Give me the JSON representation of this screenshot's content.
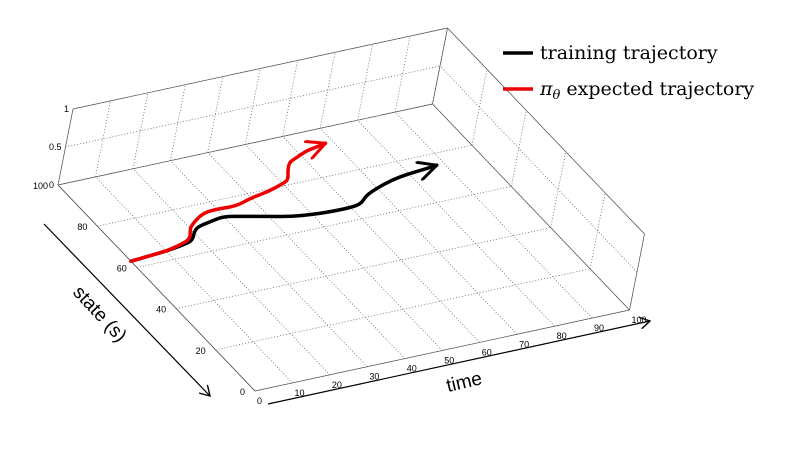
{
  "chart_data": {
    "type": "line",
    "projection": "3d",
    "xlabel": "time",
    "ylabel": "state (s)",
    "zlabel": "",
    "xlim": [
      0,
      100
    ],
    "ylim": [
      0,
      100
    ],
    "zlim": [
      0,
      1
    ],
    "xticks": [
      "0",
      "10",
      "20",
      "30",
      "40",
      "50",
      "60",
      "70",
      "80",
      "90",
      "100"
    ],
    "yticks": [
      "0",
      "20",
      "40",
      "60",
      "80",
      "100"
    ],
    "zticks": [
      "0",
      "0.5",
      "1"
    ],
    "grid": true,
    "legend_position": "top-right",
    "series": [
      {
        "name": "training trajectory",
        "color": "#000000",
        "x": [
          0,
          5,
          10,
          15,
          18,
          20,
          22,
          26,
          30,
          35,
          40,
          45,
          50,
          55,
          60,
          63,
          66,
          70,
          75,
          80,
          85,
          88
        ],
        "y": [
          63,
          63.5,
          64,
          65,
          66,
          69,
          71,
          72,
          73,
          71,
          69,
          67,
          66,
          65.5,
          65.5,
          66,
          69,
          71,
          73,
          74,
          74.5,
          75
        ],
        "z": [
          0,
          0,
          0,
          0,
          0,
          0,
          0,
          0,
          0,
          0,
          0,
          0,
          0,
          0,
          0,
          0,
          0,
          0,
          0,
          0,
          0,
          0
        ]
      },
      {
        "name": "πθ expected trajectory",
        "color": "#ee0000",
        "x": [
          0,
          5,
          10,
          15,
          18,
          20,
          22,
          26,
          30,
          35,
          40,
          45,
          50,
          52,
          54,
          56,
          58,
          60,
          62,
          64,
          66,
          68
        ],
        "y": [
          63,
          63.5,
          64,
          65.5,
          67,
          71,
          73,
          76,
          76.5,
          76,
          78,
          79,
          81,
          82,
          86,
          89,
          90,
          91,
          92,
          92.5,
          93,
          93.5
        ],
        "z": [
          0,
          0,
          0,
          0,
          0,
          0,
          0,
          0,
          0,
          0,
          0,
          0,
          0,
          0,
          0,
          0,
          0,
          0,
          0,
          0,
          0,
          0
        ]
      }
    ]
  },
  "legend": {
    "items": [
      {
        "label": "training trajectory",
        "color": "#000000"
      },
      {
        "label_prefix": "π",
        "label_sub": "θ",
        "label_rest": " expected trajectory",
        "color": "#ee0000"
      }
    ]
  }
}
